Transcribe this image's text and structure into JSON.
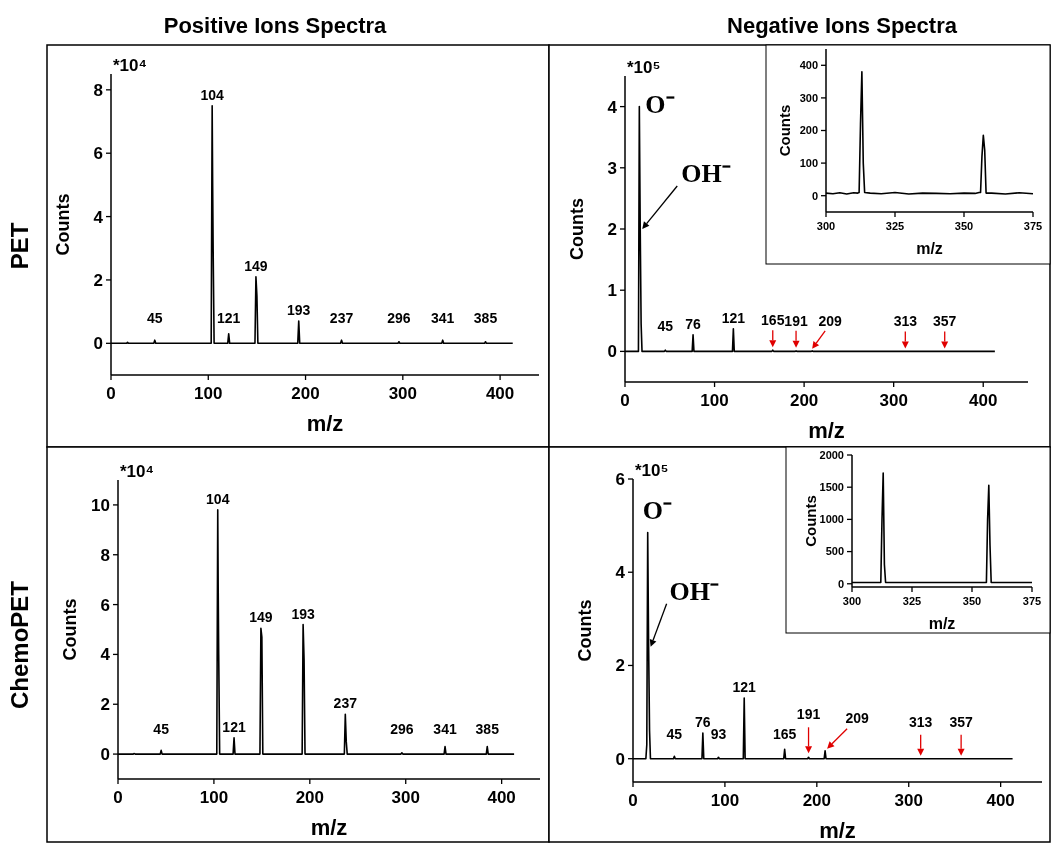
{
  "chart_data": [
    {
      "type": "line",
      "title": "Positive Ions Spectra",
      "xlabel": "m/z",
      "ylabel": "Counts",
      "xlim": [
        0,
        440
      ],
      "xticks": [
        0,
        100,
        200,
        300,
        400
      ],
      "ylim": [
        -1,
        8.5
      ],
      "yticks": [
        0,
        2,
        4,
        6,
        8
      ],
      "x": [
        0,
        16,
        17,
        18,
        44,
        45,
        46,
        103,
        104,
        104.5,
        105,
        106,
        120,
        121,
        122,
        148,
        149,
        150,
        151,
        192,
        193,
        194,
        236,
        237,
        238,
        295,
        296,
        297,
        340,
        341,
        342,
        384,
        385,
        386,
        413
      ],
      "series": [
        {
          "color": "#000000",
          "values": [
            0,
            0,
            0.03,
            0,
            0,
            0.1,
            0,
            0,
            7.5,
            5,
            3,
            0,
            0,
            0.3,
            0,
            0,
            2.1,
            1.5,
            0,
            0,
            0.7,
            0,
            0,
            0.1,
            0,
            0,
            0.05,
            0,
            0,
            0.1,
            0,
            0,
            0.05,
            0,
            0
          ]
        }
      ],
      "annotations": [
        "*10⁴",
        "PET",
        {
          "text": "104",
          "x": 104,
          "y": 7.5
        },
        {
          "text": "45",
          "x": 45,
          "y": 0.1
        },
        {
          "text": "121",
          "x": 121,
          "y": 0.3
        },
        {
          "text": "149",
          "x": 149,
          "y": 2.1
        },
        {
          "text": "193",
          "x": 193,
          "y": 0.7
        },
        {
          "text": "237",
          "x": 237,
          "y": 0.1
        },
        {
          "text": "296",
          "x": 296,
          "y": 0.05
        },
        {
          "text": "341",
          "x": 341,
          "y": 0.1
        },
        {
          "text": "385",
          "x": 385,
          "y": 0.05
        }
      ]
    },
    {
      "type": "line",
      "title": "Negative Ions Spectra",
      "xlabel": "m/z",
      "ylabel": "Counts",
      "xlim": [
        0,
        450
      ],
      "xticks": [
        0,
        100,
        200,
        300,
        400
      ],
      "ylim": [
        -0.5,
        4.5
      ],
      "yticks": [
        0,
        1,
        2,
        3,
        4
      ],
      "x": [
        0,
        15,
        16,
        17,
        18,
        19,
        44,
        45,
        46,
        75,
        76,
        77,
        120,
        121,
        122,
        164,
        165,
        166,
        190,
        191,
        192,
        208,
        209,
        210,
        413
      ],
      "series": [
        {
          "color": "#000000",
          "values": [
            0,
            0,
            4.0,
            2.0,
            0.45,
            0,
            0,
            0.02,
            0,
            0,
            0.27,
            0,
            0,
            0.37,
            0,
            0,
            0.02,
            0,
            0,
            0.01,
            0,
            0,
            0.01,
            0,
            0
          ]
        }
      ],
      "annotations": [
        "*10⁵",
        {
          "text": "O⁻",
          "x": 16,
          "y": 4.0
        },
        {
          "text": "OH⁻",
          "x": 17,
          "y": 2.0
        },
        {
          "text": "45",
          "x": 45,
          "y": 0.02
        },
        {
          "text": "76",
          "x": 76,
          "y": 0.27
        },
        {
          "text": "121",
          "x": 121,
          "y": 0.37
        },
        {
          "text": "165",
          "x": 165,
          "y": 0.02
        },
        {
          "text": "191",
          "x": 191,
          "y": 0.01
        },
        {
          "text": "209",
          "x": 209,
          "y": 0.01
        },
        {
          "text": "313",
          "x": 313,
          "y": 0
        },
        {
          "text": "357",
          "x": 357,
          "y": 0
        }
      ]
    },
    {
      "type": "line",
      "xlabel": "m/z",
      "ylabel": "Counts",
      "xlim": [
        300,
        375
      ],
      "xticks": [
        300,
        325,
        350,
        375
      ],
      "ylim": [
        -50,
        450
      ],
      "yticks": [
        0,
        100,
        200,
        300,
        400
      ],
      "x": [
        300,
        302.5,
        305,
        307.5,
        310,
        311.5,
        312,
        312.5,
        313,
        313.5,
        314,
        316,
        320,
        325,
        330,
        335,
        340,
        345,
        350,
        354,
        355.5,
        356,
        356.5,
        357,
        357.5,
        358,
        360,
        365,
        370,
        375
      ],
      "series": [
        {
          "color": "#000000",
          "values": [
            8,
            6,
            9,
            5,
            9,
            8,
            10,
            220,
            380,
            100,
            10,
            8,
            6,
            10,
            5,
            8,
            7,
            6,
            8,
            7,
            10,
            10,
            120,
            185,
            140,
            8,
            8,
            5,
            9,
            6
          ]
        }
      ]
    },
    {
      "type": "line",
      "xlabel": "m/z",
      "ylabel": "Counts",
      "xlim": [
        0,
        440
      ],
      "xticks": [
        0,
        100,
        200,
        300,
        400
      ],
      "ylim": [
        -1,
        11
      ],
      "yticks": [
        0,
        2,
        4,
        6,
        8,
        10
      ],
      "x": [
        0,
        16,
        17,
        18,
        44,
        45,
        46,
        103,
        104,
        104.5,
        105,
        106,
        120,
        121,
        122,
        148,
        149,
        150,
        151,
        192,
        193,
        194,
        195,
        236,
        237,
        238,
        239,
        295,
        296,
        297,
        340,
        341,
        342,
        384,
        385,
        386,
        413
      ],
      "series": [
        {
          "color": "#000000",
          "values": [
            0,
            0,
            0.02,
            0,
            0,
            0.15,
            0,
            0,
            9.8,
            6.5,
            4,
            0,
            0,
            0.65,
            0,
            0,
            5.05,
            4.7,
            0,
            0,
            5.2,
            3.8,
            0,
            0,
            1.6,
            0.5,
            0,
            0,
            0.05,
            0,
            0,
            0.3,
            0,
            0,
            0.3,
            0,
            0
          ]
        }
      ],
      "annotations": [
        "*10⁴",
        "ChemoPET",
        {
          "text": "104",
          "x": 104,
          "y": 9.8
        },
        {
          "text": "45",
          "x": 45,
          "y": 0.15
        },
        {
          "text": "121",
          "x": 121,
          "y": 0.65
        },
        {
          "text": "149",
          "x": 149,
          "y": 5.05
        },
        {
          "text": "193",
          "x": 193,
          "y": 5.2
        },
        {
          "text": "237",
          "x": 237,
          "y": 1.6
        },
        {
          "text": "296",
          "x": 296,
          "y": 0.05
        },
        {
          "text": "341",
          "x": 341,
          "y": 0.3
        },
        {
          "text": "385",
          "x": 385,
          "y": 0.3
        }
      ]
    },
    {
      "type": "line",
      "xlabel": "m/z",
      "ylabel": "Counts",
      "xlim": [
        0,
        445
      ],
      "xticks": [
        0,
        100,
        200,
        300,
        400
      ],
      "ylim": [
        -0.5,
        6
      ],
      "yticks": [
        0,
        2,
        4,
        6
      ],
      "x": [
        0,
        14,
        15,
        16,
        17,
        18,
        19,
        44,
        45,
        46,
        75,
        76,
        77,
        92,
        93,
        94,
        120,
        121,
        122,
        164,
        165,
        166,
        190,
        191,
        192,
        208,
        209,
        210,
        413
      ],
      "series": [
        {
          "color": "#000000",
          "values": [
            0,
            0,
            0.3,
            4.85,
            2.4,
            0.6,
            0,
            0,
            0.05,
            0,
            0,
            0.55,
            0,
            0,
            0.03,
            0,
            0,
            1.3,
            0,
            0,
            0.2,
            0,
            0,
            0.03,
            0,
            0,
            0.17,
            0,
            0
          ]
        }
      ],
      "annotations": [
        "*10⁵",
        {
          "text": "O⁻",
          "x": 16,
          "y": 4.85
        },
        {
          "text": "OH⁻",
          "x": 17,
          "y": 2.4
        },
        {
          "text": "45",
          "x": 45,
          "y": 0.05
        },
        {
          "text": "76",
          "x": 76,
          "y": 0.55
        },
        {
          "text": "93",
          "x": 93,
          "y": 0.03
        },
        {
          "text": "121",
          "x": 121,
          "y": 1.3
        },
        {
          "text": "165",
          "x": 165,
          "y": 0.2
        },
        {
          "text": "191",
          "x": 191,
          "y": 0.03
        },
        {
          "text": "209",
          "x": 209,
          "y": 0.17
        },
        {
          "text": "313",
          "x": 313,
          "y": 0
        },
        {
          "text": "357",
          "x": 357,
          "y": 0
        }
      ]
    },
    {
      "type": "line",
      "xlabel": "m/z",
      "ylabel": "Counts",
      "xlim": [
        300,
        375
      ],
      "xticks": [
        300,
        325,
        350,
        375
      ],
      "ylim": [
        -50,
        2000
      ],
      "yticks": [
        0,
        500,
        1000,
        1500,
        2000
      ],
      "x": [
        300,
        302.5,
        305,
        307.5,
        310,
        311.5,
        312,
        312.5,
        313,
        313.5,
        314,
        316,
        320,
        325,
        330,
        335,
        340,
        345,
        350,
        354,
        355.5,
        356,
        356.5,
        357,
        357.5,
        358,
        360,
        365,
        370,
        375
      ],
      "series": [
        {
          "color": "#000000",
          "values": [
            20,
            20,
            20,
            20,
            20,
            20,
            20,
            1000,
            1720,
            300,
            20,
            20,
            20,
            20,
            20,
            20,
            20,
            20,
            20,
            20,
            20,
            20,
            1000,
            1530,
            600,
            20,
            20,
            20,
            20,
            20
          ]
        }
      ]
    }
  ]
}
